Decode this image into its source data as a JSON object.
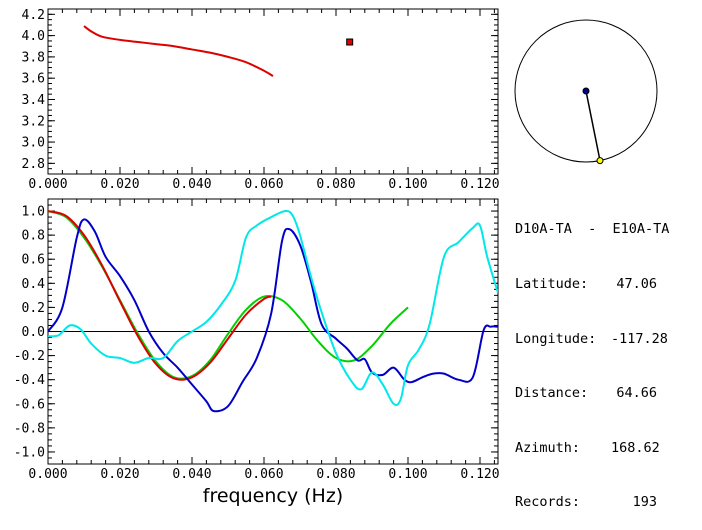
{
  "station_pair": "D10A-TA  -  E10A-TA",
  "info": [
    {
      "label": "Latitude:",
      "value": "47.06"
    },
    {
      "label": "Longitude:",
      "value": "-117.28"
    },
    {
      "label": "Distance:",
      "value": "64.66"
    },
    {
      "label": "Azimuth:",
      "value": "168.62"
    },
    {
      "label": "Records:",
      "value": "193"
    }
  ],
  "chart_data": [
    {
      "type": "line",
      "title": "",
      "xlabel": "",
      "ylabel": "",
      "xlim": [
        0.0,
        0.125
      ],
      "ylim": [
        2.7,
        4.25
      ],
      "x_ticks": [
        "0.000",
        "0.020",
        "0.040",
        "0.060",
        "0.080",
        "0.100",
        "0.120"
      ],
      "y_ticks": [
        "2.8",
        "3.0",
        "3.2",
        "3.4",
        "3.6",
        "3.8",
        "4.0",
        "4.2"
      ],
      "series": [
        {
          "color": "#dd0000",
          "x": [
            0.01,
            0.012,
            0.015,
            0.02,
            0.025,
            0.03,
            0.035,
            0.04,
            0.045,
            0.05,
            0.055,
            0.06,
            0.0625
          ],
          "y": [
            4.09,
            4.04,
            3.99,
            3.96,
            3.94,
            3.92,
            3.9,
            3.87,
            3.84,
            3.8,
            3.75,
            3.67,
            3.62
          ]
        },
        {
          "color": "#dd0000",
          "marker": "square",
          "x": [
            0.0838
          ],
          "y": [
            3.94
          ]
        }
      ]
    },
    {
      "type": "line",
      "title": "",
      "xlabel": "frequency (Hz)",
      "ylabel": "",
      "xlim": [
        0.0,
        0.125
      ],
      "ylim": [
        -1.1,
        1.1
      ],
      "x_ticks": [
        "0.000",
        "0.020",
        "0.040",
        "0.060",
        "0.080",
        "0.100",
        "0.120"
      ],
      "y_ticks": [
        "-1.0",
        "-0.8",
        "-0.6",
        "-0.4",
        "-0.2",
        "0.0",
        "0.2",
        "0.4",
        "0.6",
        "0.8",
        "1.0"
      ],
      "series": [
        {
          "color": "#00d000",
          "x": [
            0.0,
            0.005,
            0.01,
            0.015,
            0.02,
            0.025,
            0.03,
            0.035,
            0.04,
            0.045,
            0.05,
            0.055,
            0.06,
            0.065,
            0.07,
            0.075,
            0.08,
            0.085,
            0.09,
            0.095,
            0.1
          ],
          "y": [
            1.0,
            0.95,
            0.78,
            0.54,
            0.26,
            -0.02,
            -0.25,
            -0.38,
            -0.37,
            -0.24,
            -0.02,
            0.18,
            0.29,
            0.26,
            0.11,
            -0.08,
            -0.22,
            -0.24,
            -0.12,
            0.06,
            0.2
          ]
        },
        {
          "color": "#dd0000",
          "x": [
            0.0,
            0.005,
            0.01,
            0.015,
            0.02,
            0.025,
            0.03,
            0.035,
            0.04,
            0.045,
            0.05,
            0.055,
            0.06,
            0.062
          ],
          "y": [
            1.0,
            0.96,
            0.8,
            0.55,
            0.25,
            -0.04,
            -0.27,
            -0.39,
            -0.38,
            -0.26,
            -0.06,
            0.14,
            0.27,
            0.29
          ]
        },
        {
          "color": "#0000c8",
          "x": [
            0.0,
            0.004,
            0.008,
            0.01,
            0.013,
            0.016,
            0.02,
            0.024,
            0.028,
            0.032,
            0.036,
            0.04,
            0.044,
            0.046,
            0.05,
            0.054,
            0.058,
            0.062,
            0.065,
            0.067,
            0.07,
            0.073,
            0.076,
            0.08,
            0.083,
            0.086,
            0.088,
            0.09,
            0.093,
            0.096,
            0.099,
            0.101,
            0.104,
            0.107,
            0.11,
            0.114,
            0.118,
            0.121,
            0.123,
            0.125
          ],
          "y": [
            0.0,
            0.2,
            0.78,
            0.93,
            0.83,
            0.62,
            0.46,
            0.26,
            0.0,
            -0.18,
            -0.3,
            -0.44,
            -0.58,
            -0.66,
            -0.62,
            -0.42,
            -0.22,
            0.15,
            0.75,
            0.85,
            0.72,
            0.42,
            0.06,
            -0.06,
            -0.14,
            -0.24,
            -0.23,
            -0.34,
            -0.36,
            -0.3,
            -0.4,
            -0.42,
            -0.38,
            -0.35,
            -0.35,
            -0.4,
            -0.38,
            0.01,
            0.04,
            0.04
          ]
        },
        {
          "color": "#00e8e8",
          "x": [
            0.0,
            0.003,
            0.006,
            0.009,
            0.012,
            0.016,
            0.02,
            0.024,
            0.028,
            0.032,
            0.036,
            0.04,
            0.044,
            0.048,
            0.052,
            0.055,
            0.058,
            0.062,
            0.066,
            0.068,
            0.07,
            0.073,
            0.076,
            0.08,
            0.084,
            0.087,
            0.09,
            0.093,
            0.096,
            0.098,
            0.1,
            0.103,
            0.106,
            0.11,
            0.114,
            0.118,
            0.12,
            0.122,
            0.125
          ],
          "y": [
            -0.04,
            -0.03,
            0.05,
            0.02,
            -0.1,
            -0.2,
            -0.22,
            -0.26,
            -0.22,
            -0.22,
            -0.08,
            0.0,
            0.08,
            0.22,
            0.42,
            0.78,
            0.88,
            0.95,
            1.0,
            0.96,
            0.8,
            0.46,
            0.16,
            -0.18,
            -0.4,
            -0.48,
            -0.34,
            -0.44,
            -0.6,
            -0.56,
            -0.28,
            -0.15,
            0.06,
            0.62,
            0.74,
            0.86,
            0.88,
            0.62,
            0.32
          ]
        }
      ]
    }
  ],
  "map": {
    "circle_color": "#000000",
    "center_marker_color": "#00008b",
    "edge_marker_color": "#ffff00",
    "azimuth_deg": 168.62
  }
}
